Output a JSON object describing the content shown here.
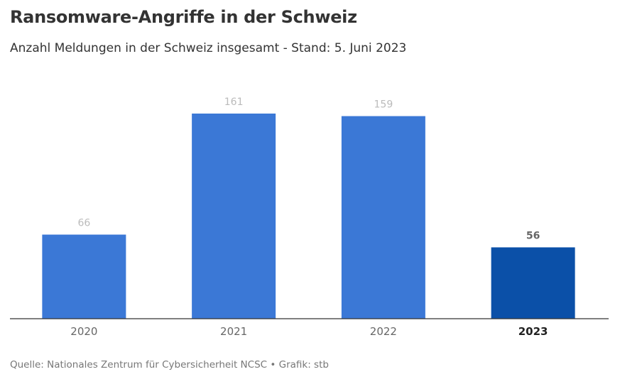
{
  "header": {
    "title": "Ransomware-Angriffe in der Schweiz",
    "subtitle": "Anzahl Meldungen in der Schweiz insgesamt - Stand: 5. Juni 2023"
  },
  "footer": {
    "source": "Quelle: Nationales Zentrum für Cybersicherheit NCSC • Grafik: stb"
  },
  "colors": {
    "bar": "#3b78d6",
    "bar_highlight": "#0b50a8",
    "axis": "#333333"
  },
  "chart_data": {
    "type": "bar",
    "title": "Ransomware-Angriffe in der Schweiz",
    "subtitle": "Anzahl Meldungen in der Schweiz insgesamt - Stand: 5. Juni 2023",
    "categories": [
      "2020",
      "2021",
      "2022",
      "2023"
    ],
    "values": [
      66,
      161,
      159,
      56
    ],
    "value_labels": [
      "66",
      "161",
      "159",
      "56"
    ],
    "highlighted": [
      false,
      false,
      false,
      true
    ],
    "xlabel": "",
    "ylabel": "",
    "ylim": [
      0,
      161
    ],
    "grid": false,
    "legend": "none"
  }
}
